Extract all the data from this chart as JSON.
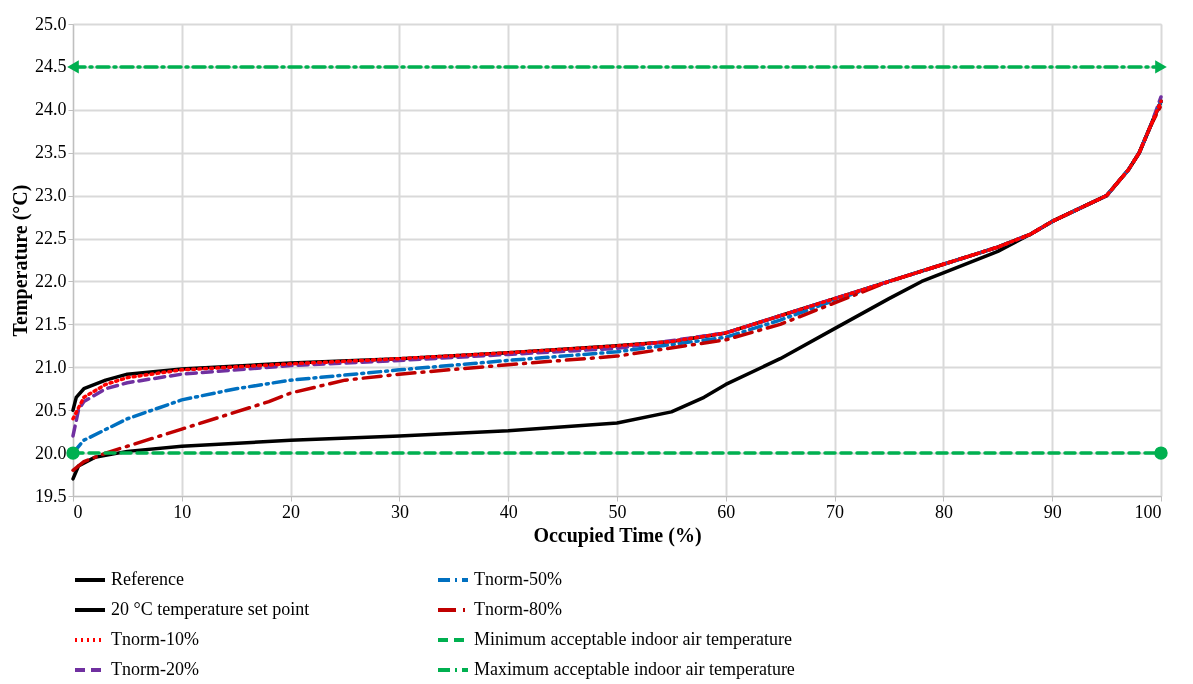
{
  "chart_data": {
    "type": "line",
    "xlabel": "Occupied Time (%)",
    "ylabel": "Temperature (°C)",
    "xlim": [
      0,
      100
    ],
    "xticks": [
      0,
      10,
      20,
      30,
      40,
      50,
      60,
      70,
      80,
      90,
      100
    ],
    "ylim": [
      19.5,
      25
    ],
    "yticks": [
      19.5,
      {
        "value": 20,
        "label": "20.0"
      },
      20.5,
      {
        "value": 21,
        "label": "21.0"
      },
      21.5,
      {
        "value": 22,
        "label": "22.0"
      },
      22.5,
      {
        "value": 23,
        "label": "23.0"
      },
      23.5,
      {
        "value": 24,
        "label": "24.0"
      },
      24.5,
      {
        "value": 25,
        "label": "25.0"
      }
    ],
    "grid": true,
    "legend": "bottom",
    "series": [
      {
        "name": "Reference",
        "color": "#000000",
        "line_style": "solid",
        "x": [
          0,
          0.3,
          1,
          3,
          5,
          10,
          20,
          30,
          40,
          50,
          55,
          60,
          65,
          70,
          75,
          80,
          85,
          88,
          90,
          95,
          97,
          98,
          99,
          100
        ],
        "values": [
          20.5,
          20.65,
          20.75,
          20.85,
          20.92,
          20.98,
          21.05,
          21.1,
          21.17,
          21.25,
          21.3,
          21.4,
          21.6,
          21.8,
          22.0,
          22.2,
          22.4,
          22.55,
          22.7,
          23.0,
          23.3,
          23.5,
          23.8,
          24.1
        ]
      },
      {
        "name": "20 °C temperature set point",
        "color": "#000000",
        "line_style": "solid",
        "x": [
          0,
          0.5,
          2,
          5,
          10,
          20,
          30,
          40,
          50,
          55,
          58,
          60,
          65,
          70,
          75,
          78,
          80,
          85,
          88,
          90,
          95,
          97,
          98,
          99,
          100
        ],
        "values": [
          19.7,
          19.85,
          19.95,
          20.02,
          20.08,
          20.15,
          20.2,
          20.26,
          20.35,
          20.48,
          20.65,
          20.8,
          21.1,
          21.45,
          21.8,
          22.0,
          22.1,
          22.35,
          22.55,
          22.7,
          23.0,
          23.3,
          23.5,
          23.8,
          24.1
        ]
      },
      {
        "name": "Tnorm-10%",
        "color": "#ff0000",
        "line_style": "dotted",
        "x": [
          0,
          1,
          3,
          5,
          10,
          20,
          30,
          40,
          50,
          55,
          60,
          65,
          70,
          75,
          80,
          85,
          88,
          90,
          95,
          97,
          98,
          99,
          100
        ],
        "values": [
          20.4,
          20.65,
          20.8,
          20.88,
          20.97,
          21.04,
          21.1,
          21.17,
          21.25,
          21.3,
          21.4,
          21.6,
          21.8,
          22.0,
          22.2,
          22.4,
          22.55,
          22.7,
          23.0,
          23.3,
          23.5,
          23.8,
          24.1
        ]
      },
      {
        "name": "Tnorm-20%",
        "color": "#7030a0",
        "line_style": "dashed",
        "x": [
          0,
          0.5,
          1,
          3,
          5,
          10,
          20,
          30,
          40,
          50,
          60,
          65,
          70,
          75,
          80,
          85,
          88,
          90,
          95,
          97,
          98,
          99,
          100
        ],
        "values": [
          20.2,
          20.5,
          20.6,
          20.75,
          20.82,
          20.92,
          21.02,
          21.08,
          21.15,
          21.22,
          21.4,
          21.6,
          21.8,
          22.0,
          22.2,
          22.4,
          22.55,
          22.7,
          23.0,
          23.3,
          23.5,
          23.8,
          24.15
        ]
      },
      {
        "name": "Tnorm-50%",
        "color": "#0070c0",
        "line_style": "dashed",
        "x": [
          0,
          1,
          5,
          10,
          15,
          20,
          30,
          40,
          50,
          60,
          65,
          70,
          75,
          80,
          85,
          88,
          90,
          95,
          97,
          98,
          99,
          100
        ],
        "values": [
          20.0,
          20.15,
          20.4,
          20.62,
          20.75,
          20.85,
          20.97,
          21.08,
          21.18,
          21.35,
          21.55,
          21.78,
          22.0,
          22.2,
          22.4,
          22.55,
          22.7,
          23.0,
          23.3,
          23.5,
          23.8,
          24.1
        ]
      },
      {
        "name": "Tnorm-80%",
        "color": "#c00000",
        "line_style": "dashed",
        "x": [
          0,
          1,
          3,
          5,
          10,
          15,
          18,
          20,
          25,
          30,
          40,
          50,
          60,
          65,
          70,
          75,
          80,
          85,
          88,
          90,
          95,
          97,
          98,
          99,
          100
        ],
        "values": [
          19.8,
          19.9,
          20.0,
          20.08,
          20.28,
          20.48,
          20.6,
          20.7,
          20.85,
          20.92,
          21.03,
          21.13,
          21.32,
          21.5,
          21.75,
          22.0,
          22.2,
          22.4,
          22.55,
          22.7,
          23.0,
          23.3,
          23.5,
          23.8,
          24.05
        ]
      },
      {
        "name": "Minimum acceptable indoor air temperature",
        "color": "#00b050",
        "line_style": "dashed",
        "marker": "circle",
        "x": [
          0,
          100
        ],
        "values": [
          20.0,
          20.0
        ]
      },
      {
        "name": "Maximum acceptable indoor air temperature",
        "color": "#00b050",
        "line_style": "dashed",
        "marker": "triangle",
        "x": [
          0,
          100
        ],
        "values": [
          24.5,
          24.5
        ]
      }
    ]
  }
}
